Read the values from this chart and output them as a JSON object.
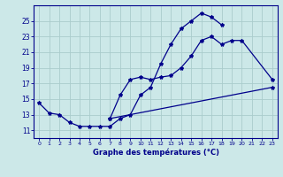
{
  "xlabel": "Graphe des températures (°C)",
  "bg_color": "#cce8e8",
  "grid_color": "#aacccc",
  "line_color": "#00008b",
  "xlim": [
    -0.5,
    23.5
  ],
  "ylim": [
    10.0,
    27.0
  ],
  "yticks": [
    11,
    13,
    15,
    17,
    19,
    21,
    23,
    25
  ],
  "xticks": [
    0,
    1,
    2,
    3,
    4,
    5,
    6,
    7,
    8,
    9,
    10,
    11,
    12,
    13,
    14,
    15,
    16,
    17,
    18,
    19,
    20,
    21,
    22,
    23
  ],
  "curve1_x": [
    0,
    1,
    2,
    3,
    4,
    5,
    6,
    7,
    8,
    9,
    10,
    11,
    12,
    13,
    14,
    15,
    16,
    17,
    18
  ],
  "curve1_y": [
    14.5,
    13.2,
    13.0,
    12.0,
    11.5,
    11.5,
    11.5,
    11.5,
    12.5,
    13.0,
    15.5,
    16.5,
    19.5,
    22.0,
    24.0,
    25.0,
    26.0,
    25.5,
    24.5
  ],
  "curve2_x": [
    7,
    8,
    9,
    10,
    11,
    12,
    13,
    14,
    15,
    16,
    17,
    18,
    19,
    20,
    23
  ],
  "curve2_y": [
    12.5,
    15.5,
    17.5,
    17.8,
    17.5,
    17.8,
    18.0,
    19.0,
    20.5,
    22.5,
    23.0,
    22.0,
    22.5,
    22.5,
    17.5
  ],
  "curve3_x": [
    7,
    23
  ],
  "curve3_y": [
    12.5,
    16.5
  ]
}
